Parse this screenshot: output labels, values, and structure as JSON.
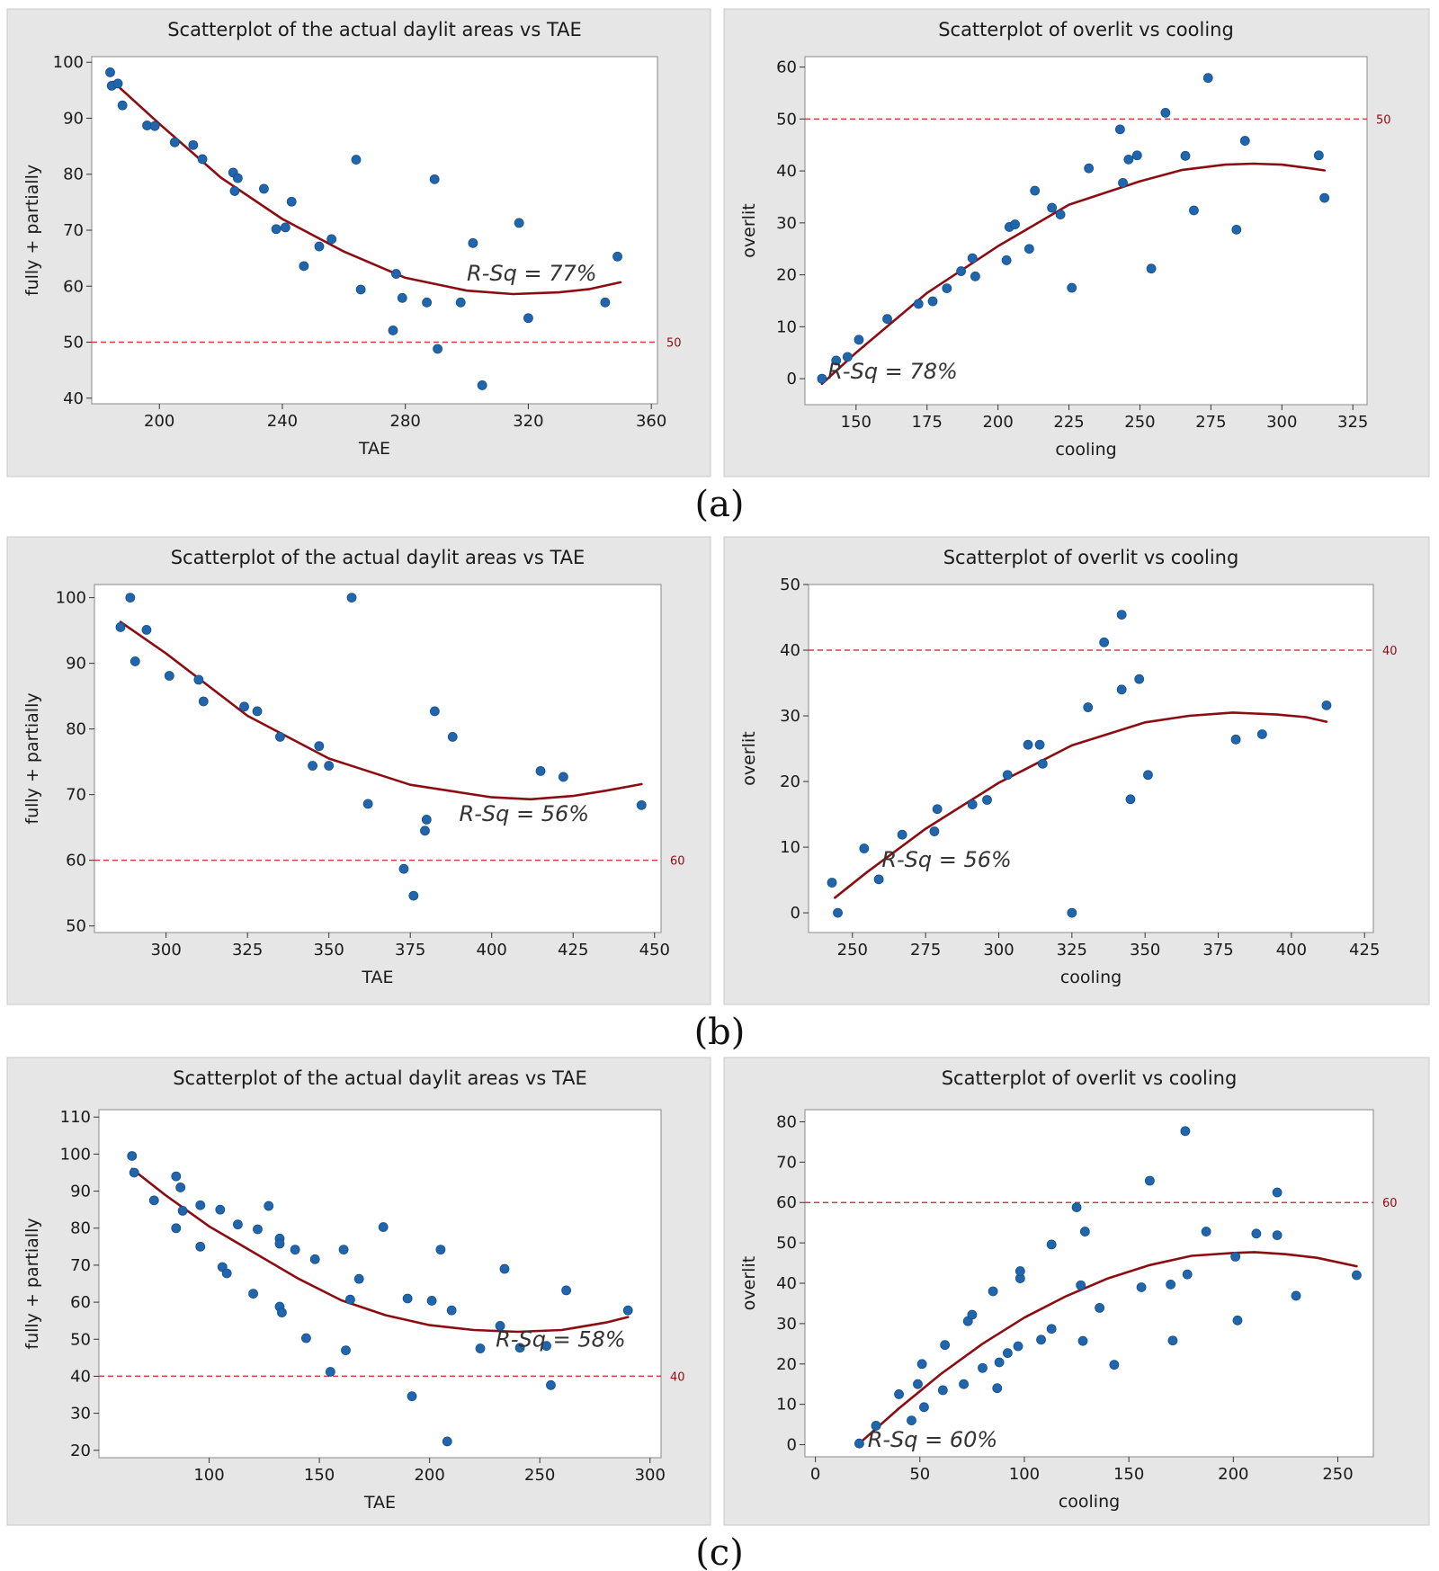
{
  "figure": {
    "captions": [
      "(a)",
      "(b)",
      "(c)"
    ]
  },
  "colors": {
    "point": "#2166ac",
    "fit": "#8b0d12",
    "reference": "#cf3f3f",
    "reference_label": "#8b0d12",
    "panel": "#e6e6e6"
  },
  "chart_data": [
    {
      "type": "scatter",
      "title": "Scatterplot of the actual daylit areas vs TAE",
      "xlabel": "TAE",
      "ylabel": "fully + partially",
      "xlim": [
        178,
        362
      ],
      "ylim": [
        39,
        101
      ],
      "xticks": [
        200,
        240,
        280,
        320,
        360
      ],
      "yticks": [
        40,
        50,
        60,
        70,
        80,
        90,
        100
      ],
      "grid": false,
      "reference_line": {
        "y": 50,
        "label": "50"
      },
      "annotation": "R-Sq = 77%",
      "points": [
        [
          184,
          98.2
        ],
        [
          184.5,
          95.8
        ],
        [
          186.5,
          96.2
        ],
        [
          188,
          92.3
        ],
        [
          196,
          88.7
        ],
        [
          198.5,
          88.6
        ],
        [
          205,
          85.7
        ],
        [
          211,
          85.2
        ],
        [
          214,
          82.7
        ],
        [
          224,
          80.3
        ],
        [
          225.5,
          79.3
        ],
        [
          224.5,
          77
        ],
        [
          234,
          77.4
        ],
        [
          238,
          70.2
        ],
        [
          241,
          70.5
        ],
        [
          243,
          75.1
        ],
        [
          247,
          63.6
        ],
        [
          252,
          67.1
        ],
        [
          256,
          68.4
        ],
        [
          264,
          82.6
        ],
        [
          265.5,
          59.4
        ],
        [
          276,
          52.1
        ],
        [
          277,
          62.2
        ],
        [
          279,
          57.9
        ],
        [
          287,
          57.1
        ],
        [
          289.5,
          79.1
        ],
        [
          290.5,
          48.8
        ],
        [
          298,
          57.1
        ],
        [
          302,
          67.7
        ],
        [
          305,
          42.3
        ],
        [
          317,
          71.3
        ],
        [
          320,
          54.3
        ],
        [
          345,
          57.1
        ],
        [
          349,
          65.3
        ]
      ],
      "fit": [
        [
          185,
          96.5
        ],
        [
          200,
          89
        ],
        [
          220,
          79.4
        ],
        [
          240,
          72
        ],
        [
          260,
          66.2
        ],
        [
          280,
          61.5
        ],
        [
          300,
          59.2
        ],
        [
          315,
          58.6
        ],
        [
          330,
          58.9
        ],
        [
          340,
          59.5
        ],
        [
          350,
          60.7
        ]
      ]
    },
    {
      "type": "scatter",
      "title": "Scatterplot of overlit vs cooling",
      "xlabel": "cooling",
      "ylabel": "overlit",
      "xlim": [
        132,
        330
      ],
      "ylim": [
        -5,
        62
      ],
      "xticks": [
        150,
        175,
        200,
        225,
        250,
        275,
        300,
        325
      ],
      "yticks": [
        0,
        10,
        20,
        30,
        40,
        50,
        60
      ],
      "grid": false,
      "reference_line": {
        "y": 50,
        "label": "50"
      },
      "annotation": "R-Sq = 78%",
      "points": [
        [
          138,
          0
        ],
        [
          143,
          3.5
        ],
        [
          147,
          4.2
        ],
        [
          151,
          7.5
        ],
        [
          161,
          11.5
        ],
        [
          172,
          14.4
        ],
        [
          177,
          14.9
        ],
        [
          182,
          17.4
        ],
        [
          187,
          20.7
        ],
        [
          191,
          23.2
        ],
        [
          192,
          19.7
        ],
        [
          203,
          22.8
        ],
        [
          204,
          29.2
        ],
        [
          206,
          29.7
        ],
        [
          211,
          25
        ],
        [
          213,
          36.2
        ],
        [
          219,
          32.9
        ],
        [
          222,
          31.6
        ],
        [
          226,
          17.5
        ],
        [
          232,
          40.5
        ],
        [
          243,
          48
        ],
        [
          244,
          37.7
        ],
        [
          246,
          42.2
        ],
        [
          249,
          43
        ],
        [
          254,
          21.2
        ],
        [
          259,
          51.2
        ],
        [
          266,
          42.9
        ],
        [
          269,
          32.4
        ],
        [
          274,
          57.9
        ],
        [
          284,
          28.7
        ],
        [
          287,
          45.8
        ],
        [
          313,
          43
        ],
        [
          315,
          34.8
        ]
      ],
      "fit": [
        [
          138,
          -1
        ],
        [
          150,
          5
        ],
        [
          175,
          16.5
        ],
        [
          200,
          25.5
        ],
        [
          225,
          33.5
        ],
        [
          250,
          38
        ],
        [
          265,
          40.2
        ],
        [
          280,
          41.2
        ],
        [
          290,
          41.4
        ],
        [
          300,
          41.2
        ],
        [
          310,
          40.5
        ],
        [
          315,
          40.1
        ]
      ]
    },
    {
      "type": "scatter",
      "title": "Scatterplot of the actual daylit areas vs TAE",
      "xlabel": "TAE",
      "ylabel": "fully + partially",
      "xlim": [
        278,
        452
      ],
      "ylim": [
        49,
        102
      ],
      "xticks": [
        300,
        325,
        350,
        375,
        400,
        425,
        450
      ],
      "yticks": [
        50,
        60,
        70,
        80,
        90,
        100
      ],
      "grid": false,
      "reference_line": {
        "y": 60,
        "label": "60"
      },
      "annotation": "R-Sq = 56%",
      "points": [
        [
          286,
          95.5
        ],
        [
          289,
          100
        ],
        [
          290.5,
          90.3
        ],
        [
          294,
          95.1
        ],
        [
          301,
          88.1
        ],
        [
          310,
          87.5
        ],
        [
          311.5,
          84.2
        ],
        [
          324,
          83.4
        ],
        [
          328,
          82.7
        ],
        [
          335,
          78.8
        ],
        [
          345,
          74.4
        ],
        [
          347,
          77.4
        ],
        [
          350,
          74.4
        ],
        [
          357,
          100
        ],
        [
          362,
          68.6
        ],
        [
          373,
          58.7
        ],
        [
          376,
          54.6
        ],
        [
          379.5,
          64.5
        ],
        [
          380,
          66.2
        ],
        [
          382.5,
          82.7
        ],
        [
          388,
          78.8
        ],
        [
          415,
          73.6
        ],
        [
          422,
          72.7
        ],
        [
          446,
          68.4
        ]
      ],
      "fit": [
        [
          286,
          96.3
        ],
        [
          300,
          91.5
        ],
        [
          325,
          82
        ],
        [
          350,
          75.5
        ],
        [
          375,
          71.5
        ],
        [
          400,
          69.6
        ],
        [
          412,
          69.3
        ],
        [
          425,
          69.8
        ],
        [
          435,
          70.6
        ],
        [
          446,
          71.6
        ]
      ]
    },
    {
      "type": "scatter",
      "title": "Scatterplot of overlit vs cooling",
      "xlabel": "cooling",
      "ylabel": "overlit",
      "xlim": [
        235,
        428
      ],
      "ylim": [
        -3,
        50
      ],
      "xticks": [
        250,
        275,
        300,
        325,
        350,
        375,
        400,
        425
      ],
      "yticks": [
        0,
        10,
        20,
        30,
        40,
        50
      ],
      "grid": false,
      "reference_line": {
        "y": 40,
        "label": "40"
      },
      "annotation": "R-Sq = 56%",
      "points": [
        [
          243,
          4.6
        ],
        [
          245,
          0
        ],
        [
          254,
          9.8
        ],
        [
          259,
          5.1
        ],
        [
          267,
          11.9
        ],
        [
          278,
          12.4
        ],
        [
          279,
          15.8
        ],
        [
          291,
          16.5
        ],
        [
          296,
          17.2
        ],
        [
          303,
          21
        ],
        [
          310,
          25.6
        ],
        [
          314,
          25.6
        ],
        [
          315,
          22.7
        ],
        [
          325,
          0
        ],
        [
          330.5,
          31.3
        ],
        [
          336,
          41.2
        ],
        [
          342,
          34
        ],
        [
          342,
          45.4
        ],
        [
          345,
          17.3
        ],
        [
          348,
          35.6
        ],
        [
          351,
          21
        ],
        [
          381,
          26.4
        ],
        [
          390,
          27.2
        ],
        [
          412,
          31.6
        ]
      ],
      "fit": [
        [
          244,
          2.3
        ],
        [
          255,
          6.2
        ],
        [
          275,
          12.8
        ],
        [
          300,
          19.8
        ],
        [
          325,
          25.5
        ],
        [
          350,
          29
        ],
        [
          365,
          30
        ],
        [
          380,
          30.5
        ],
        [
          395,
          30.2
        ],
        [
          405,
          29.8
        ],
        [
          412,
          29.1
        ]
      ]
    },
    {
      "type": "scatter",
      "title": "Scatterplot of the actual daylit areas vs TAE",
      "xlabel": "TAE",
      "ylabel": "fully + partially",
      "xlim": [
        50,
        305
      ],
      "ylim": [
        18,
        112
      ],
      "xticks": [
        100,
        150,
        200,
        250,
        300
      ],
      "yticks": [
        20,
        30,
        40,
        50,
        60,
        70,
        80,
        90,
        100,
        110
      ],
      "grid": false,
      "reference_line": {
        "y": 40,
        "label": "40"
      },
      "annotation": "R-Sq = 58%",
      "points": [
        [
          65,
          99.5
        ],
        [
          66,
          95
        ],
        [
          75,
          87.5
        ],
        [
          85,
          94
        ],
        [
          85,
          80
        ],
        [
          87,
          91
        ],
        [
          88,
          84.7
        ],
        [
          96,
          75
        ],
        [
          96,
          86.2
        ],
        [
          105,
          85
        ],
        [
          106,
          69.5
        ],
        [
          108,
          67.8
        ],
        [
          113,
          81
        ],
        [
          120,
          62.3
        ],
        [
          122,
          79.7
        ],
        [
          127,
          86
        ],
        [
          132,
          77.2
        ],
        [
          132,
          75.8
        ],
        [
          132,
          58.8
        ],
        [
          133,
          57.2
        ],
        [
          139,
          74.2
        ],
        [
          144,
          50.3
        ],
        [
          148,
          71.6
        ],
        [
          155,
          41.2
        ],
        [
          161,
          74.2
        ],
        [
          162,
          47
        ],
        [
          164,
          60.7
        ],
        [
          168,
          66.3
        ],
        [
          179,
          80.3
        ],
        [
          190,
          61
        ],
        [
          192,
          34.6
        ],
        [
          201,
          60.4
        ],
        [
          205,
          74.2
        ],
        [
          208,
          22.4
        ],
        [
          210,
          57.8
        ],
        [
          223,
          47.5
        ],
        [
          232,
          53.6
        ],
        [
          234,
          69
        ],
        [
          241,
          47.7
        ],
        [
          253,
          48.2
        ],
        [
          255,
          37.6
        ],
        [
          262,
          63.2
        ],
        [
          290,
          57.8
        ]
      ],
      "fit": [
        [
          65,
          96
        ],
        [
          80,
          89
        ],
        [
          100,
          80.5
        ],
        [
          120,
          73.5
        ],
        [
          140,
          66.5
        ],
        [
          160,
          60.5
        ],
        [
          180,
          56.5
        ],
        [
          200,
          53.8
        ],
        [
          220,
          52.5
        ],
        [
          240,
          52
        ],
        [
          260,
          52.5
        ],
        [
          280,
          54.5
        ],
        [
          290,
          56
        ]
      ]
    },
    {
      "type": "scatter",
      "title": "Scatterplot of overlit vs cooling",
      "xlabel": "cooling",
      "ylabel": "overlit",
      "xlim": [
        -5,
        267
      ],
      "ylim": [
        -3,
        83
      ],
      "xticks": [
        0,
        50,
        100,
        150,
        200,
        250
      ],
      "yticks": [
        0,
        10,
        20,
        30,
        40,
        50,
        60,
        70,
        80
      ],
      "grid": false,
      "reference_line": {
        "y": 60,
        "label": "60"
      },
      "annotation": "R-Sq = 60%",
      "points": [
        [
          21,
          0.3
        ],
        [
          29,
          4.7
        ],
        [
          40,
          12.5
        ],
        [
          46,
          6
        ],
        [
          49,
          15
        ],
        [
          51,
          20
        ],
        [
          52,
          9.3
        ],
        [
          61,
          13.5
        ],
        [
          62,
          24.7
        ],
        [
          71,
          15
        ],
        [
          73,
          30.6
        ],
        [
          75,
          32.2
        ],
        [
          80,
          19
        ],
        [
          85,
          38
        ],
        [
          87,
          14
        ],
        [
          88,
          20.4
        ],
        [
          92,
          22.7
        ],
        [
          97,
          24.4
        ],
        [
          98,
          41.2
        ],
        [
          98,
          43
        ],
        [
          108,
          26
        ],
        [
          113,
          28.7
        ],
        [
          113,
          49.6
        ],
        [
          125,
          58.8
        ],
        [
          127,
          39.5
        ],
        [
          128,
          25.7
        ],
        [
          129,
          52.8
        ],
        [
          136,
          33.9
        ],
        [
          143,
          19.8
        ],
        [
          156,
          39
        ],
        [
          160,
          65.4
        ],
        [
          170,
          39.7
        ],
        [
          171,
          25.8
        ],
        [
          177,
          77.7
        ],
        [
          178,
          42.2
        ],
        [
          187,
          52.8
        ],
        [
          201,
          46.6
        ],
        [
          202,
          30.8
        ],
        [
          211,
          52.3
        ],
        [
          221,
          51.9
        ],
        [
          221,
          62.5
        ],
        [
          230,
          36.9
        ],
        [
          259,
          42
        ]
      ],
      "fit": [
        [
          21,
          0.3
        ],
        [
          40,
          9
        ],
        [
          60,
          17.5
        ],
        [
          80,
          25
        ],
        [
          100,
          31.5
        ],
        [
          120,
          36.8
        ],
        [
          140,
          41.2
        ],
        [
          160,
          44.5
        ],
        [
          180,
          46.8
        ],
        [
          200,
          47.5
        ],
        [
          210,
          47.7
        ],
        [
          225,
          47.2
        ],
        [
          240,
          46.3
        ],
        [
          259,
          44.2
        ]
      ]
    }
  ]
}
